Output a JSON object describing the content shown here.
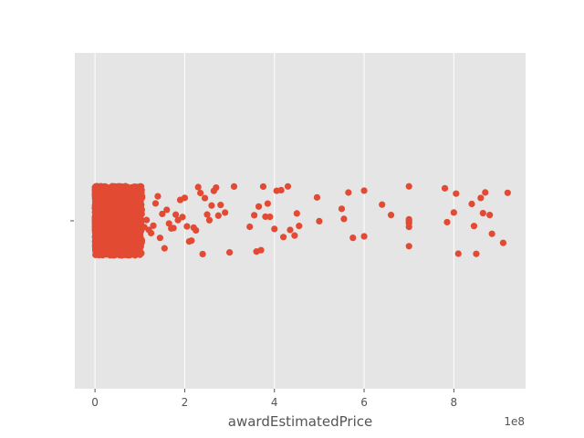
{
  "chart_data": {
    "type": "scatter",
    "subtype": "strip",
    "title": "",
    "xlabel": "awardEstimatedPrice",
    "ylabel": "",
    "x_offset_text": "1e8",
    "x_scale_factor": 100000000,
    "xlim": [
      -0.45,
      9.6
    ],
    "xticks": [
      0,
      2,
      4,
      6,
      8
    ],
    "xtick_labels": [
      "0",
      "2",
      "4",
      "6",
      "8"
    ],
    "yticks": [
      0
    ],
    "ytick_labels": [
      ""
    ],
    "grid": true,
    "background": "#e5e5e5",
    "point_color": "#e24a33",
    "dense_band": {
      "x_min": 0,
      "x_max": 1.05,
      "description": "thousands of overlapping points"
    },
    "sparse_points": [
      1.1,
      1.15,
      1.2,
      1.25,
      1.3,
      1.35,
      1.4,
      1.45,
      1.5,
      1.55,
      1.6,
      1.65,
      1.7,
      1.75,
      1.8,
      1.85,
      1.9,
      1.95,
      2.0,
      2.05,
      2.1,
      2.15,
      2.2,
      2.25,
      2.3,
      2.35,
      2.4,
      2.45,
      2.5,
      2.55,
      2.6,
      2.65,
      2.7,
      2.75,
      2.8,
      2.9,
      3.0,
      3.1,
      3.45,
      3.55,
      3.6,
      3.65,
      3.7,
      3.75,
      3.8,
      3.85,
      3.9,
      4.0,
      4.05,
      4.15,
      4.2,
      4.3,
      4.35,
      4.45,
      4.5,
      4.55,
      4.95,
      5.0,
      5.5,
      5.55,
      5.65,
      5.75,
      6.0,
      6.0,
      6.4,
      6.6,
      7.0,
      7.0,
      7.0,
      7.0,
      7.0,
      7.0,
      7.8,
      7.85,
      8.0,
      8.05,
      8.1,
      8.4,
      8.45,
      8.5,
      8.6,
      8.65,
      8.7,
      8.8,
      8.85,
      9.1,
      9.2
    ]
  }
}
